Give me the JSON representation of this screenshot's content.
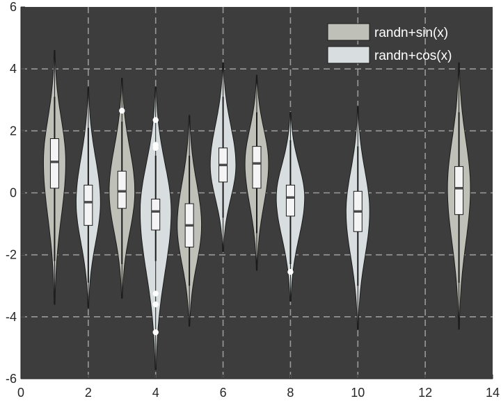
{
  "chart_data": {
    "type": "violin",
    "colors": {
      "background": "#3d3d3d",
      "grid": "#9a9a9a",
      "sin_fill": "#bfc0b8",
      "cos_fill": "#d8dedf",
      "box_fill": "#f4f4f4",
      "outlier": "#ffffff"
    },
    "xlim": [
      0,
      14
    ],
    "ylim": [
      -6,
      6
    ],
    "x_ticks": [
      "0",
      "2",
      "4",
      "6",
      "8",
      "10",
      "12",
      "14"
    ],
    "y_ticks": [
      "-6",
      "-4",
      "-2",
      "0",
      "2",
      "4",
      "6"
    ],
    "grid": true,
    "legend_position": "top-right",
    "series": [
      {
        "name": "randn+sin(x)",
        "violins": [
          {
            "x": 1,
            "min": -3.6,
            "max": 4.6,
            "q1": 0.15,
            "median": 1.0,
            "q3": 1.75,
            "whisker_low": -2.2,
            "whisker_high": 3.1,
            "width": 0.33,
            "outliers": []
          },
          {
            "x": 3,
            "min": -3.4,
            "max": 3.7,
            "q1": -0.5,
            "median": 0.05,
            "q3": 0.7,
            "whisker_low": -2.3,
            "whisker_high": 2.3,
            "width": 0.38,
            "outliers": [
              2.65
            ]
          },
          {
            "x": 5,
            "min": -4.3,
            "max": 2.5,
            "q1": -1.75,
            "median": -1.05,
            "q3": -0.35,
            "whisker_low": -3.0,
            "whisker_high": 1.2,
            "width": 0.36,
            "outliers": []
          },
          {
            "x": 7,
            "min": -2.5,
            "max": 3.8,
            "q1": 0.15,
            "median": 0.95,
            "q3": 1.5,
            "whisker_low": -1.3,
            "whisker_high": 2.6,
            "width": 0.35,
            "outliers": []
          },
          {
            "x": 13,
            "min": -4.4,
            "max": 4.2,
            "q1": -0.7,
            "median": 0.15,
            "q3": 0.85,
            "whisker_low": -2.9,
            "whisker_high": 2.6,
            "width": 0.34,
            "outliers": []
          }
        ]
      },
      {
        "name": "randn+cos(x)",
        "violins": [
          {
            "x": 2,
            "min": -3.7,
            "max": 3.4,
            "q1": -1.05,
            "median": -0.3,
            "q3": 0.25,
            "whisker_low": -2.9,
            "whisker_high": 2.1,
            "width": 0.36,
            "outliers": []
          },
          {
            "x": 4,
            "min": -5.7,
            "max": 3.4,
            "q1": -1.2,
            "median": -0.6,
            "q3": -0.2,
            "whisker_low": -2.2,
            "whisker_high": 1.2,
            "width": 0.46,
            "outliers": [
              2.35,
              1.55,
              1.45,
              -3.25,
              -3.6,
              -4.5
            ]
          },
          {
            "x": 6,
            "min": -1.9,
            "max": 4.2,
            "q1": 0.35,
            "median": 0.9,
            "q3": 1.45,
            "whisker_low": -0.8,
            "whisker_high": 3.1,
            "width": 0.38,
            "outliers": []
          },
          {
            "x": 8,
            "min": -3.5,
            "max": 2.6,
            "q1": -0.75,
            "median": -0.15,
            "q3": 0.25,
            "whisker_low": -2.3,
            "whisker_high": 1.7,
            "width": 0.42,
            "outliers": [
              -2.55
            ]
          },
          {
            "x": 10,
            "min": -4.4,
            "max": 2.8,
            "q1": -1.25,
            "median": -0.6,
            "q3": 0.05,
            "whisker_low": -3.0,
            "whisker_high": 1.5,
            "width": 0.35,
            "outliers": []
          }
        ]
      }
    ]
  }
}
